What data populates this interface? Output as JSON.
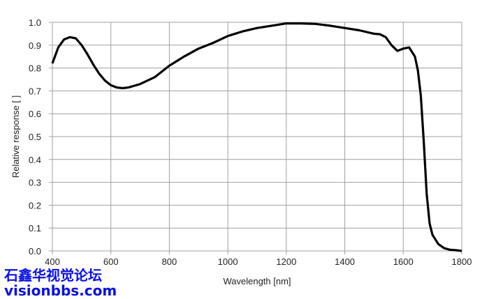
{
  "chart_data": {
    "type": "line",
    "title": "",
    "xlabel": "Wavelength [nm]",
    "ylabel": "Relative response [ ]",
    "xlim": [
      400,
      1800
    ],
    "ylim": [
      0,
      1.0
    ],
    "grid": true,
    "xticks": [
      "400",
      "600",
      "800",
      "1000",
      "1200",
      "1400",
      "1600",
      "1800"
    ],
    "yticks": [
      "0.0",
      "0.1",
      "0.2",
      "0.3",
      "0.4",
      "0.5",
      "0.6",
      "0.7",
      "0.8",
      "0.9",
      "1.0"
    ],
    "series": [
      {
        "name": "Relative response",
        "color": "#000000",
        "x": [
          400,
          420,
          440,
          460,
          480,
          500,
          520,
          540,
          560,
          580,
          600,
          620,
          640,
          660,
          700,
          750,
          800,
          850,
          900,
          950,
          1000,
          1050,
          1100,
          1150,
          1200,
          1250,
          1300,
          1350,
          1400,
          1450,
          1500,
          1520,
          1540,
          1560,
          1580,
          1600,
          1620,
          1640,
          1650,
          1660,
          1670,
          1680,
          1690,
          1700,
          1720,
          1740,
          1760,
          1780,
          1800
        ],
        "y": [
          0.82,
          0.89,
          0.925,
          0.935,
          0.93,
          0.9,
          0.86,
          0.815,
          0.775,
          0.745,
          0.725,
          0.715,
          0.712,
          0.715,
          0.73,
          0.76,
          0.81,
          0.85,
          0.885,
          0.91,
          0.94,
          0.96,
          0.975,
          0.985,
          0.995,
          0.995,
          0.993,
          0.985,
          0.975,
          0.965,
          0.95,
          0.948,
          0.935,
          0.9,
          0.875,
          0.885,
          0.89,
          0.85,
          0.79,
          0.68,
          0.48,
          0.25,
          0.12,
          0.07,
          0.03,
          0.012,
          0.005,
          0.003,
          0.0
        ]
      }
    ]
  },
  "watermark": {
    "line1": "石鑫华视觉论坛",
    "line2": "visionbbs.com"
  }
}
